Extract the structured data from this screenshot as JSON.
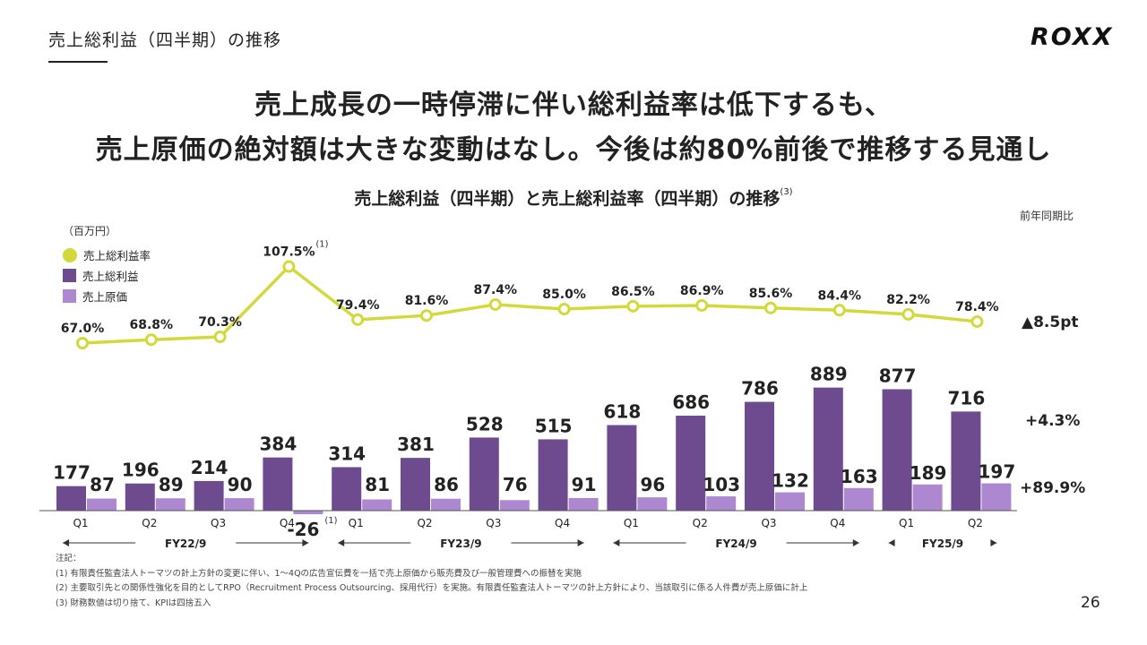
{
  "header": {
    "section_title": "売上総利益（四半期）の推移",
    "logo": "ROXX",
    "headline_line1": "売上成長の一時停滞に伴い総利益率は低下するも、",
    "headline_line2": "売上原価の絶対額は大きな変動はなし。今後は約80%前後で推移する見通し",
    "page_number": "26"
  },
  "colors": {
    "gross_profit": "#6e4a8e",
    "cost": "#ad88d0",
    "margin": "#d3d93a",
    "text": "#222222"
  },
  "chart_data": {
    "type": "bar",
    "title": "売上総利益（四半期）と売上総利益率（四半期）の推移",
    "title_note": "(3)",
    "unit_label": "（百万円）",
    "yoy_header": "前年同期比",
    "legend": [
      {
        "name": "売上総利益率",
        "color": "#d3d93a",
        "shape": "circle"
      },
      {
        "name": "売上総利益",
        "color": "#6e4a8e",
        "shape": "square"
      },
      {
        "name": "売上原価",
        "color": "#ad88d0",
        "shape": "square"
      }
    ],
    "categories": [
      "Q1",
      "Q2",
      "Q3",
      "Q4",
      "Q1",
      "Q2",
      "Q3",
      "Q4",
      "Q1",
      "Q2",
      "Q3",
      "Q4",
      "Q1",
      "Q2"
    ],
    "fiscal_years": [
      {
        "label": "FY22/9",
        "start": 0,
        "end": 3
      },
      {
        "label": "FY23/9",
        "start": 4,
        "end": 7
      },
      {
        "label": "FY24/9",
        "start": 8,
        "end": 11
      },
      {
        "label": "FY25/9",
        "start": 12,
        "end": 13
      }
    ],
    "series": [
      {
        "name": "売上総利益",
        "values": [
          177,
          196,
          214,
          384,
          314,
          381,
          528,
          515,
          618,
          686,
          786,
          889,
          877,
          716
        ]
      },
      {
        "name": "売上原価",
        "values": [
          87,
          89,
          90,
          -26,
          81,
          86,
          76,
          91,
          96,
          103,
          132,
          163,
          189,
          197
        ]
      },
      {
        "name": "売上総利益率",
        "unit": "%",
        "values": [
          67.0,
          68.8,
          70.3,
          107.5,
          79.4,
          81.6,
          87.4,
          85.0,
          86.5,
          86.9,
          85.6,
          84.4,
          82.2,
          78.4
        ]
      }
    ],
    "annotations": [
      {
        "series": "売上総利益率",
        "index": 3,
        "text": "(1)"
      },
      {
        "series": "売上原価",
        "index": 3,
        "text": "(1)"
      }
    ],
    "yoy": {
      "margin": "▲8.5pt",
      "gross_profit": "+4.3%",
      "cost": "+89.9%"
    }
  },
  "notes": {
    "title": "注記：",
    "items": [
      "(1) 有限責任監査法人トーマツの計上方針の変更に伴い、1〜4Qの広告宣伝費を一括で売上原価から販売費及び一般管理費への振替を実施",
      "(2) 主要取引先との関係性強化を目的としてRPO（Recruitment Process Outsourcing、採用代行）を実施。有限責任監査法人トーマツの計上方針により、当該取引に係る人件費が売上原価に計上",
      "(3) 財務数値は切り捨て、KPIは四捨五入"
    ]
  }
}
